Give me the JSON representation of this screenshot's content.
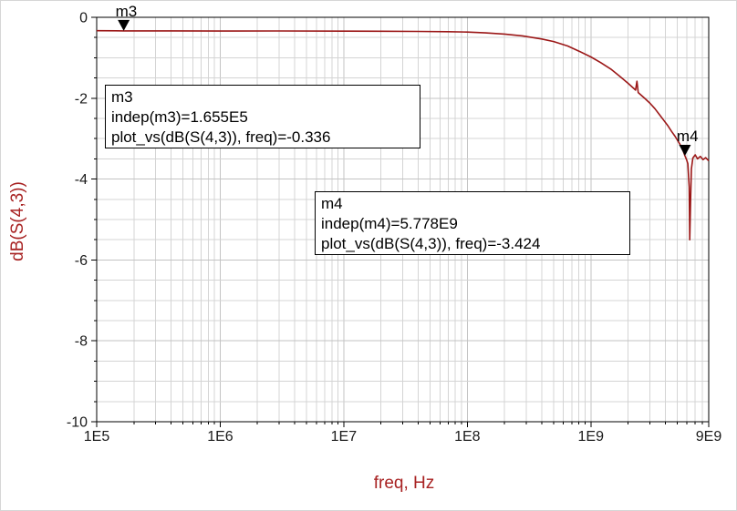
{
  "chart_data": {
    "type": "line",
    "title": "",
    "xlabel": "freq, Hz",
    "ylabel": "dB(S(4,3))",
    "x_scale": "log",
    "xlim": [
      100000.0,
      9000000000.0
    ],
    "ylim": [
      -10,
      0
    ],
    "grid": true,
    "legend": "none",
    "x_ticks": [
      {
        "label": "1E5",
        "f": 100000.0
      },
      {
        "label": "1E6",
        "f": 1000000.0
      },
      {
        "label": "1E7",
        "f": 10000000.0
      },
      {
        "label": "1E8",
        "f": 100000000.0
      },
      {
        "label": "1E9",
        "f": 1000000000.0
      },
      {
        "label": "9E9",
        "f": 9000000000.0
      }
    ],
    "y_ticks": [
      {
        "label": "0",
        "v": 0
      },
      {
        "label": "-2",
        "v": -2
      },
      {
        "label": "-4",
        "v": -4
      },
      {
        "label": "-6",
        "v": -6
      },
      {
        "label": "-8",
        "v": -8
      },
      {
        "label": "-10",
        "v": -10
      }
    ],
    "series": [
      {
        "name": "dB(S(4,3))",
        "color": "#9b1717",
        "points": [
          [
            100000.0,
            -0.33
          ],
          [
            165500.0,
            -0.336
          ],
          [
            400000.0,
            -0.335
          ],
          [
            1000000.0,
            -0.34
          ],
          [
            3000000.0,
            -0.338
          ],
          [
            10000000.0,
            -0.342
          ],
          [
            20000000.0,
            -0.345
          ],
          [
            40000000.0,
            -0.348
          ],
          [
            70000000.0,
            -0.355
          ],
          [
            100000000.0,
            -0.365
          ],
          [
            140000000.0,
            -0.385
          ],
          [
            200000000.0,
            -0.415
          ],
          [
            280000000.0,
            -0.46
          ],
          [
            400000000.0,
            -0.535
          ],
          [
            500000000.0,
            -0.6
          ],
          [
            650000000.0,
            -0.71
          ],
          [
            800000000.0,
            -0.835
          ],
          [
            1000000000.0,
            -0.98
          ],
          [
            1200000000.0,
            -1.12
          ],
          [
            1450000000.0,
            -1.28
          ],
          [
            1700000000.0,
            -1.45
          ],
          [
            2000000000.0,
            -1.63
          ],
          [
            2300000000.0,
            -1.8
          ],
          [
            2360000000.0,
            -1.58
          ],
          [
            2420000000.0,
            -1.86
          ],
          [
            2700000000.0,
            -1.99
          ],
          [
            3000000000.0,
            -2.12
          ],
          [
            3300000000.0,
            -2.26
          ],
          [
            3600000000.0,
            -2.41
          ],
          [
            3900000000.0,
            -2.55
          ],
          [
            4200000000.0,
            -2.68
          ],
          [
            4500000000.0,
            -2.82
          ],
          [
            4800000000.0,
            -2.94
          ],
          [
            5100000000.0,
            -3.07
          ],
          [
            5400000000.0,
            -3.2
          ],
          [
            5600000000.0,
            -3.31
          ],
          [
            5778000000.0,
            -3.424
          ],
          [
            5950000000.0,
            -3.52
          ],
          [
            6100000000.0,
            -3.62
          ],
          [
            6250000000.0,
            -4.2
          ],
          [
            6320000000.0,
            -5.5
          ],
          [
            6420000000.0,
            -4.55
          ],
          [
            6520000000.0,
            -3.75
          ],
          [
            6700000000.0,
            -3.48
          ],
          [
            7000000000.0,
            -3.4
          ],
          [
            7300000000.0,
            -3.5
          ],
          [
            7700000000.0,
            -3.44
          ],
          [
            8100000000.0,
            -3.52
          ],
          [
            8500000000.0,
            -3.47
          ],
          [
            9000000000.0,
            -3.55
          ]
        ]
      }
    ],
    "markers": [
      {
        "name": "m3",
        "freq": 165500.0,
        "value": -0.336,
        "label_lines": [
          "m3",
          "indep(m3)=1.655E5",
          "plot_vs(dB(S(4,3)), freq)=-0.336"
        ]
      },
      {
        "name": "m4",
        "freq": 5778000000.0,
        "value": -3.424,
        "label_lines": [
          "m4",
          "indep(m4)=5.778E9",
          "plot_vs(dB(S(4,3)), freq)=-3.424"
        ]
      }
    ]
  },
  "colors": {
    "trace": "#9b1717",
    "axis_label": "#a82222",
    "tick_text": "#1a1a1a",
    "grid_minor": "#d4d4d4",
    "grid_major": "#c3c3c3",
    "axis": "#000000",
    "marker": "#000000",
    "note_border": "#000000",
    "note_bg": "#ffffff"
  }
}
